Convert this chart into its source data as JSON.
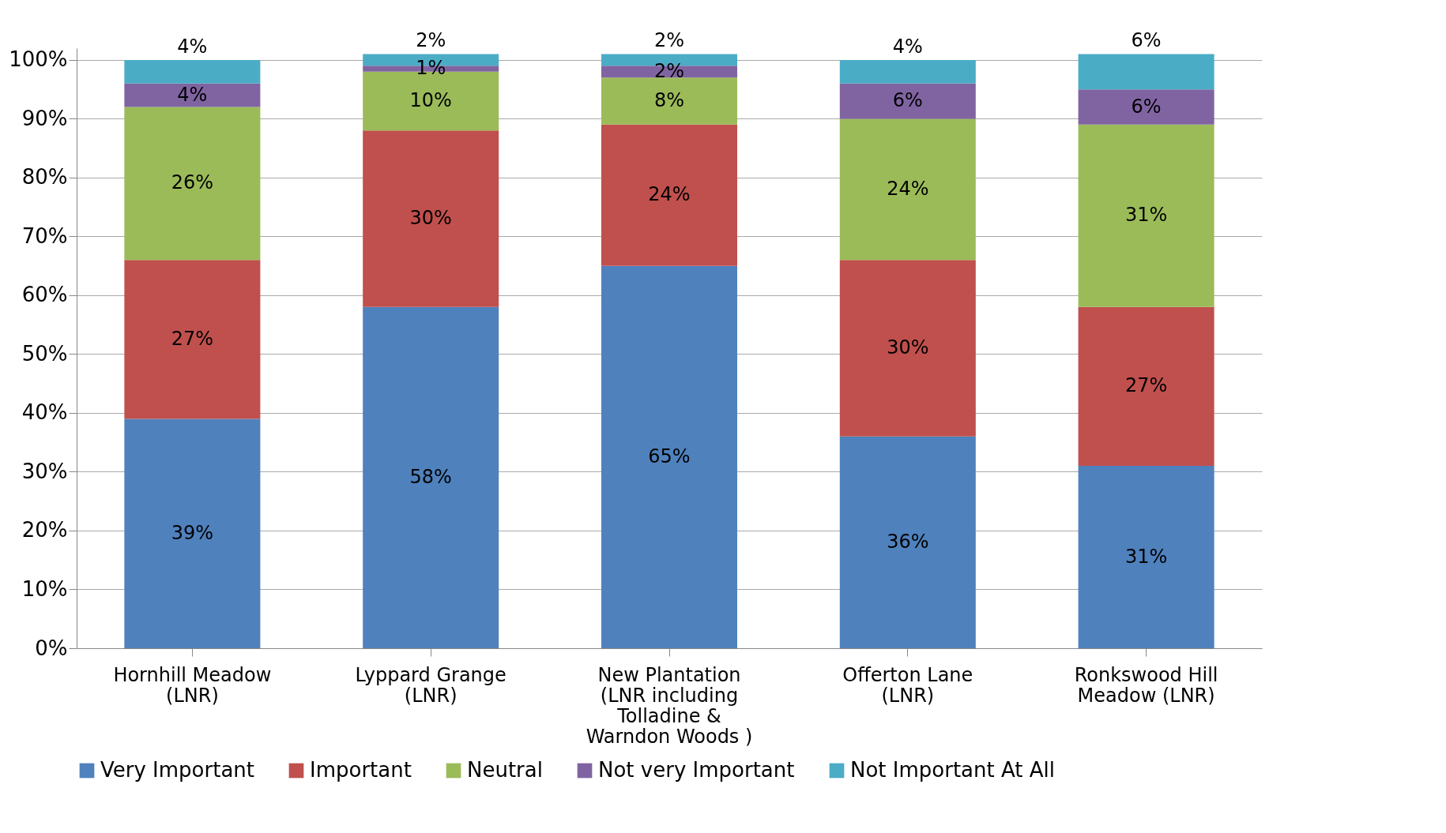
{
  "chart_data": {
    "type": "bar",
    "stacked": true,
    "categories": [
      "Hornhill Meadow (LNR)",
      "Lyppard Grange (LNR)",
      "New Plantation (LNR including Tolladine & Warndon Woods )",
      "Offerton Lane (LNR)",
      "Ronkswood Hill Meadow (LNR)"
    ],
    "series": [
      {
        "name": "Very Important",
        "color": "#4f81bd",
        "values": [
          39,
          58,
          65,
          36,
          31
        ],
        "value_labels": [
          "39%",
          "58%",
          "65%",
          "36%",
          "31%"
        ]
      },
      {
        "name": "Important",
        "color": "#c0504d",
        "values": [
          27,
          30,
          24,
          30,
          27
        ],
        "value_labels": [
          "27%",
          "30%",
          "24%",
          "30%",
          "27%"
        ]
      },
      {
        "name": "Neutral",
        "color": "#9bbb59",
        "values": [
          26,
          10,
          8,
          24,
          31
        ],
        "value_labels": [
          "26%",
          "10%",
          "8%",
          "24%",
          "31%"
        ]
      },
      {
        "name": "Not very Important",
        "color": "#8064a2",
        "values": [
          4,
          1,
          2,
          6,
          6
        ],
        "value_labels": [
          "4%",
          "1%",
          "2%",
          "6%",
          "6%"
        ]
      },
      {
        "name": "Not Important At All",
        "color": "#4bacc6",
        "values": [
          4,
          2,
          2,
          4,
          6
        ],
        "value_labels": [
          "4%",
          "2%",
          "2%",
          "4%",
          "6%"
        ]
      }
    ],
    "ylim": [
      0,
      102
    ],
    "yticks": [
      {
        "value": 0,
        "label": "0%"
      },
      {
        "value": 10,
        "label": "10%"
      },
      {
        "value": 20,
        "label": "20%"
      },
      {
        "value": 30,
        "label": "30%"
      },
      {
        "value": 40,
        "label": "40%"
      },
      {
        "value": 50,
        "label": "50%"
      },
      {
        "value": 60,
        "label": "60%"
      },
      {
        "value": 70,
        "label": "70%"
      },
      {
        "value": 80,
        "label": "80%"
      },
      {
        "value": 90,
        "label": "90%"
      },
      {
        "value": 100,
        "label": "100%"
      }
    ],
    "grid": "y",
    "legend": "bottom"
  }
}
